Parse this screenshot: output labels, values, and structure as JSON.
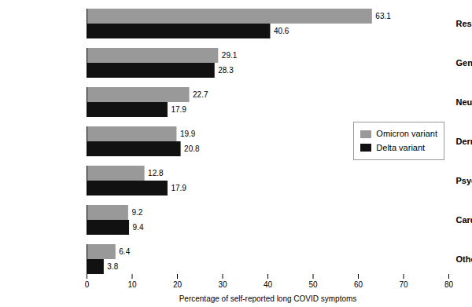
{
  "chart_data": {
    "type": "bar",
    "orientation": "horizontal",
    "categories": [
      "Respiratory",
      "Generalized",
      "Neurological",
      "Dermatological",
      "Psychological",
      "Cardiovascular",
      "Others"
    ],
    "series": [
      {
        "name": "Omicron variant",
        "color": "#999999",
        "values": [
          63.1,
          29.1,
          22.7,
          19.9,
          12.8,
          9.2,
          6.4
        ]
      },
      {
        "name": "Delta variant",
        "color": "#111111",
        "values": [
          40.6,
          28.3,
          17.9,
          20.8,
          17.9,
          9.4,
          3.8
        ]
      }
    ],
    "xlabel": "Percentage of self-reported long COVID symptoms",
    "xlim": [
      0,
      80
    ],
    "xticks": [
      0,
      10,
      20,
      30,
      40,
      50,
      60,
      70,
      80
    ],
    "data_labels": true,
    "legend": "right",
    "grid": false
  }
}
